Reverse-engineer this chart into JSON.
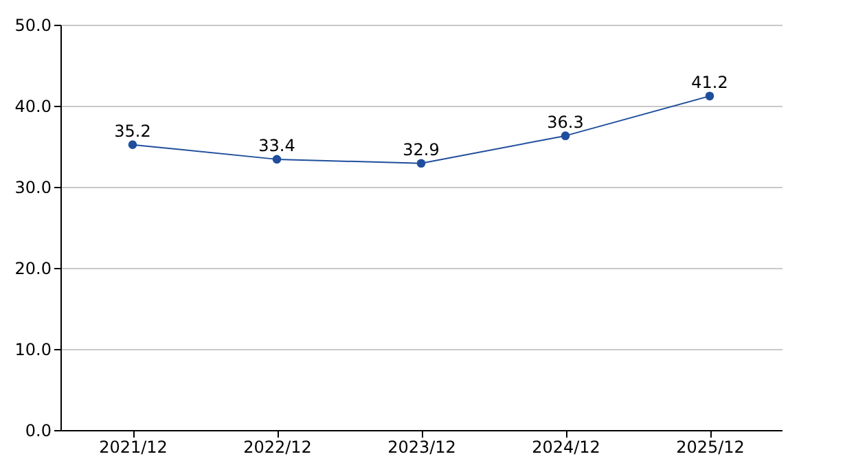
{
  "chart_data": {
    "type": "line",
    "categories": [
      "2021/12",
      "2022/12",
      "2023/12",
      "2024/12",
      "2025/12"
    ],
    "series": [
      {
        "color": "#1f4e9c",
        "values": [
          35.2,
          33.4,
          32.9,
          36.3,
          41.2
        ]
      }
    ],
    "ylim": [
      0,
      50
    ],
    "yticks": [
      {
        "value": 0,
        "label": "0.0"
      },
      {
        "value": 10,
        "label": "10.0"
      },
      {
        "value": 20,
        "label": "20.0"
      },
      {
        "value": 30,
        "label": "30.0"
      },
      {
        "value": 40,
        "label": "40.0"
      },
      {
        "value": 50,
        "label": "50.0"
      }
    ],
    "grid": "y",
    "marker": "circle",
    "line_style": "solid",
    "data_labels": true
  }
}
